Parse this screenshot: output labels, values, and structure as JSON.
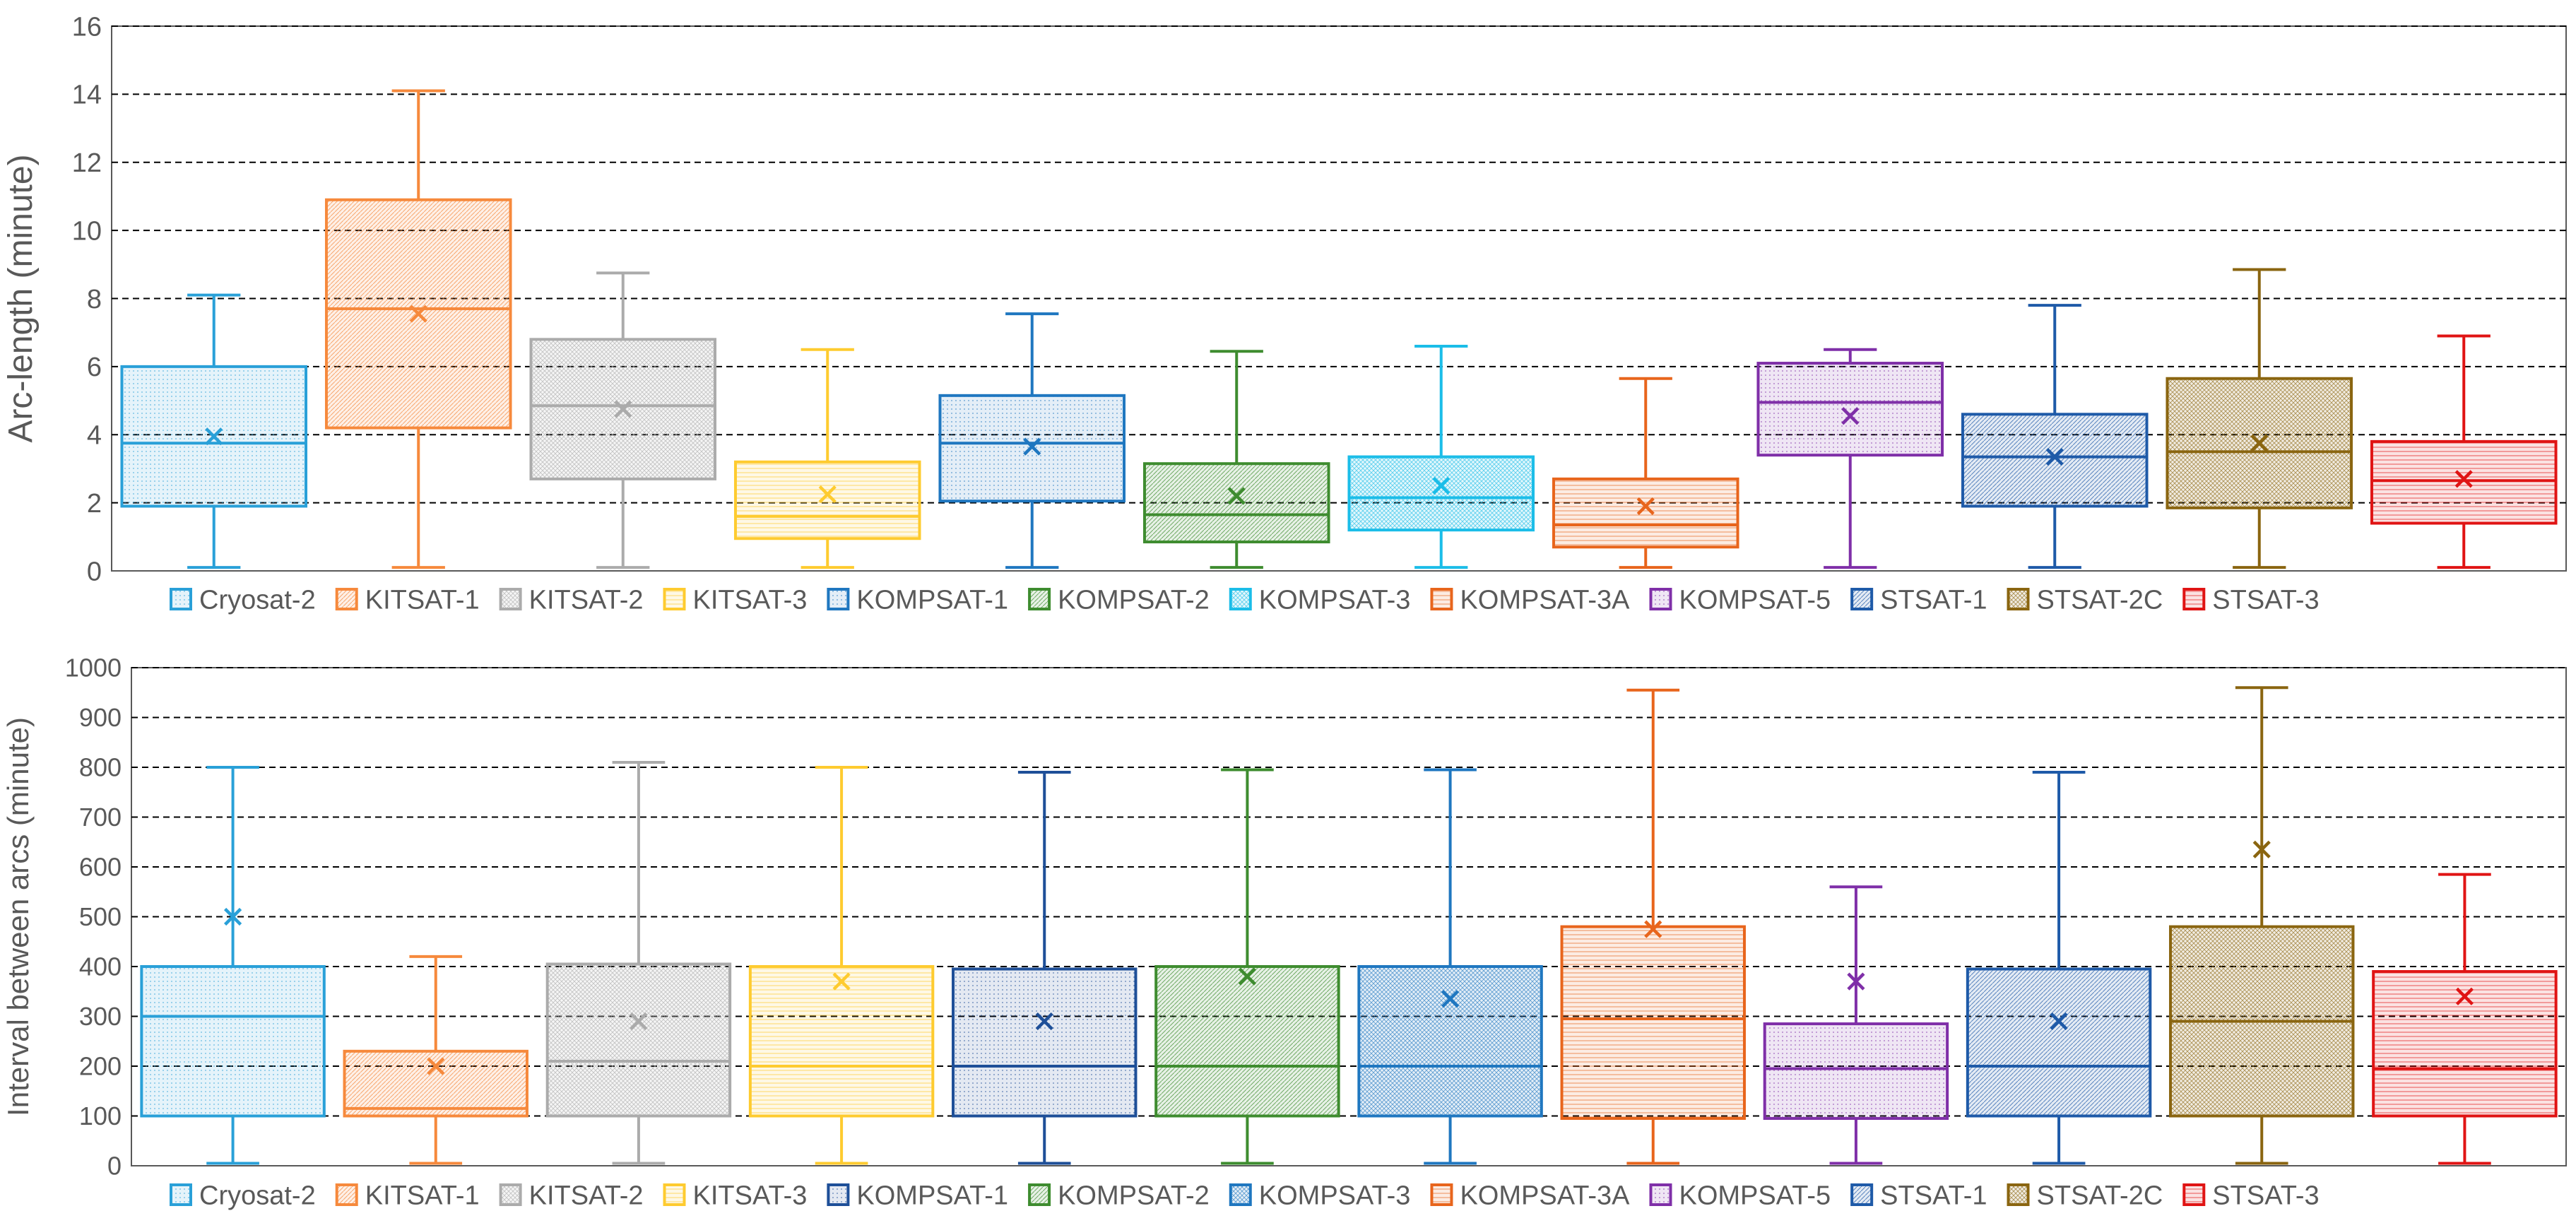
{
  "chart_data": [
    {
      "type": "boxplot",
      "ylabel": "Arc-length (minute)",
      "ylim": [
        0,
        16
      ],
      "yticks": [
        0,
        2,
        4,
        6,
        8,
        10,
        12,
        14,
        16
      ],
      "grid": true,
      "legend_position": "bottom",
      "series": [
        {
          "name": "Cryosat-2",
          "color": "#29a0d8",
          "min": 0.1,
          "q1": 1.9,
          "median": 3.75,
          "q3": 6.0,
          "max": 8.1,
          "mean": 3.95
        },
        {
          "name": "KITSAT-1",
          "color": "#f6893c",
          "min": 0.1,
          "q1": 4.2,
          "median": 7.7,
          "q3": 10.9,
          "max": 14.1,
          "mean": 7.55
        },
        {
          "name": "KITSAT-2",
          "color": "#ababab",
          "min": 0.1,
          "q1": 2.7,
          "median": 4.85,
          "q3": 6.8,
          "max": 8.75,
          "mean": 4.75
        },
        {
          "name": "KITSAT-3",
          "color": "#fecb2f",
          "min": 0.1,
          "q1": 0.95,
          "median": 1.6,
          "q3": 3.2,
          "max": 6.5,
          "mean": 2.25
        },
        {
          "name": "KOMPSAT-1",
          "color": "#1f77c0",
          "min": 0.1,
          "q1": 2.05,
          "median": 3.75,
          "q3": 5.15,
          "max": 7.55,
          "mean": 3.65
        },
        {
          "name": "KOMPSAT-2",
          "color": "#3e8c2f",
          "min": 0.1,
          "q1": 0.85,
          "median": 1.65,
          "q3": 3.15,
          "max": 6.45,
          "mean": 2.2
        },
        {
          "name": "KOMPSAT-3",
          "color": "#1bbde8",
          "min": 0.1,
          "q1": 1.2,
          "median": 2.15,
          "q3": 3.35,
          "max": 6.6,
          "mean": 2.5
        },
        {
          "name": "KOMPSAT-3A",
          "color": "#e8651c",
          "min": 0.1,
          "q1": 0.7,
          "median": 1.35,
          "q3": 2.7,
          "max": 5.65,
          "mean": 1.9
        },
        {
          "name": "KOMPSAT-5",
          "color": "#7f2fa8",
          "min": 0.1,
          "q1": 3.4,
          "median": 4.95,
          "q3": 6.1,
          "max": 6.5,
          "mean": 4.55
        },
        {
          "name": "STSAT-1",
          "color": "#1e5aa8",
          "min": 0.1,
          "q1": 1.9,
          "median": 3.35,
          "q3": 4.6,
          "max": 7.8,
          "mean": 3.35
        },
        {
          "name": "STSAT-2C",
          "color": "#8a6510",
          "min": 0.1,
          "q1": 1.85,
          "median": 3.5,
          "q3": 5.65,
          "max": 8.85,
          "mean": 3.75
        },
        {
          "name": "STSAT-3",
          "color": "#e01414",
          "min": 0.1,
          "q1": 1.4,
          "median": 2.65,
          "q3": 3.8,
          "max": 6.9,
          "mean": 2.7
        }
      ]
    },
    {
      "type": "boxplot",
      "ylabel": "Interval between arcs (minute)",
      "ylim": [
        0,
        1000
      ],
      "yticks": [
        0,
        100,
        200,
        300,
        400,
        500,
        600,
        700,
        800,
        900,
        1000
      ],
      "grid": true,
      "legend_position": "bottom",
      "series": [
        {
          "name": "Cryosat-2",
          "color": "#29a0d8",
          "min": 5,
          "q1": 100,
          "median": 300,
          "q3": 400,
          "max": 800,
          "mean": 500
        },
        {
          "name": "KITSAT-1",
          "color": "#f6893c",
          "min": 5,
          "q1": 100,
          "median": 115,
          "q3": 230,
          "max": 420,
          "mean": 200
        },
        {
          "name": "KITSAT-2",
          "color": "#ababab",
          "min": 5,
          "q1": 100,
          "median": 210,
          "q3": 405,
          "max": 810,
          "mean": 290
        },
        {
          "name": "KITSAT-3",
          "color": "#fecb2f",
          "min": 5,
          "q1": 100,
          "median": 200,
          "q3": 400,
          "max": 800,
          "mean": 370
        },
        {
          "name": "KOMPSAT-1",
          "color": "#1e4f98",
          "min": 5,
          "q1": 100,
          "median": 200,
          "q3": 395,
          "max": 790,
          "mean": 290
        },
        {
          "name": "KOMPSAT-2",
          "color": "#3e8c2f",
          "min": 5,
          "q1": 100,
          "median": 200,
          "q3": 400,
          "max": 795,
          "mean": 380
        },
        {
          "name": "KOMPSAT-3",
          "color": "#1f77c0",
          "min": 5,
          "q1": 100,
          "median": 200,
          "q3": 400,
          "max": 795,
          "mean": 335
        },
        {
          "name": "KOMPSAT-3A",
          "color": "#e8651c",
          "min": 5,
          "q1": 95,
          "median": 295,
          "q3": 480,
          "max": 955,
          "mean": 475
        },
        {
          "name": "KOMPSAT-5",
          "color": "#7f2fa8",
          "min": 5,
          "q1": 95,
          "median": 195,
          "q3": 285,
          "max": 560,
          "mean": 370
        },
        {
          "name": "STSAT-1",
          "color": "#1e5aa8",
          "min": 5,
          "q1": 100,
          "median": 200,
          "q3": 395,
          "max": 790,
          "mean": 290
        },
        {
          "name": "STSAT-2C",
          "color": "#8a6510",
          "min": 5,
          "q1": 100,
          "median": 290,
          "q3": 480,
          "max": 960,
          "mean": 635
        },
        {
          "name": "STSAT-3",
          "color": "#e01414",
          "min": 5,
          "q1": 100,
          "median": 195,
          "q3": 390,
          "max": 585,
          "mean": 340
        }
      ]
    }
  ]
}
